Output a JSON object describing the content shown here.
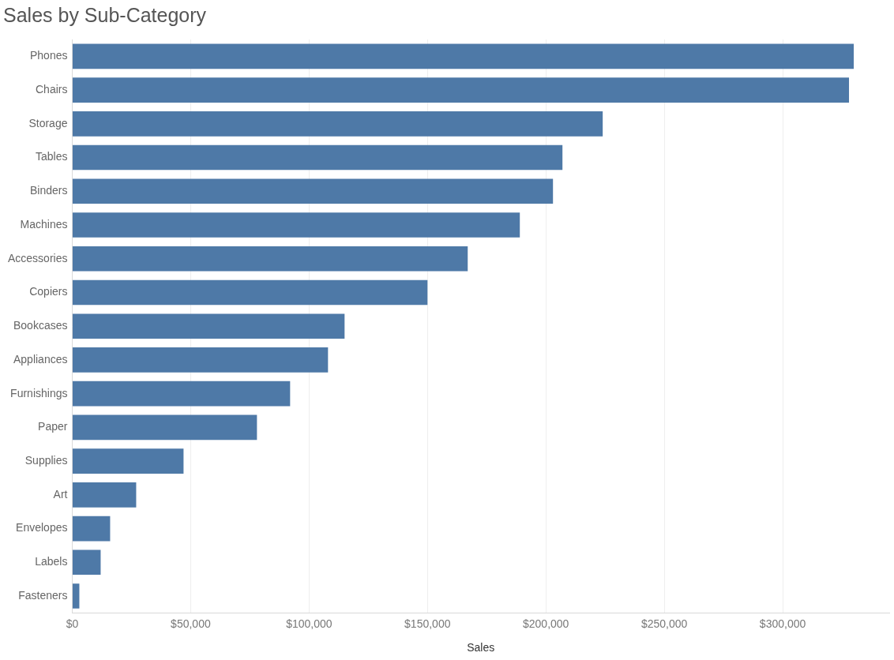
{
  "chart_data": {
    "type": "bar",
    "title": "Sales by Sub-Category",
    "xlabel": "Sales",
    "orientation": "horizontal",
    "categories": [
      "Phones",
      "Chairs",
      "Storage",
      "Tables",
      "Binders",
      "Machines",
      "Accessories",
      "Copiers",
      "Bookcases",
      "Appliances",
      "Furnishings",
      "Paper",
      "Supplies",
      "Art",
      "Envelopes",
      "Labels",
      "Fasteners"
    ],
    "values": [
      330000,
      328000,
      224000,
      207000,
      203000,
      189000,
      167000,
      150000,
      115000,
      108000,
      92000,
      78000,
      47000,
      27000,
      16000,
      12000,
      3000
    ],
    "color": "#4e79a7",
    "xlim": [
      0,
      345000
    ],
    "xticks": [
      {
        "value": 0,
        "label": "$0"
      },
      {
        "value": 50000,
        "label": "$50,000"
      },
      {
        "value": 100000,
        "label": "$100,000"
      },
      {
        "value": 150000,
        "label": "$150,000"
      },
      {
        "value": 200000,
        "label": "$200,000"
      },
      {
        "value": 250000,
        "label": "$250,000"
      },
      {
        "value": 300000,
        "label": "$300,000"
      }
    ],
    "grid": true
  }
}
